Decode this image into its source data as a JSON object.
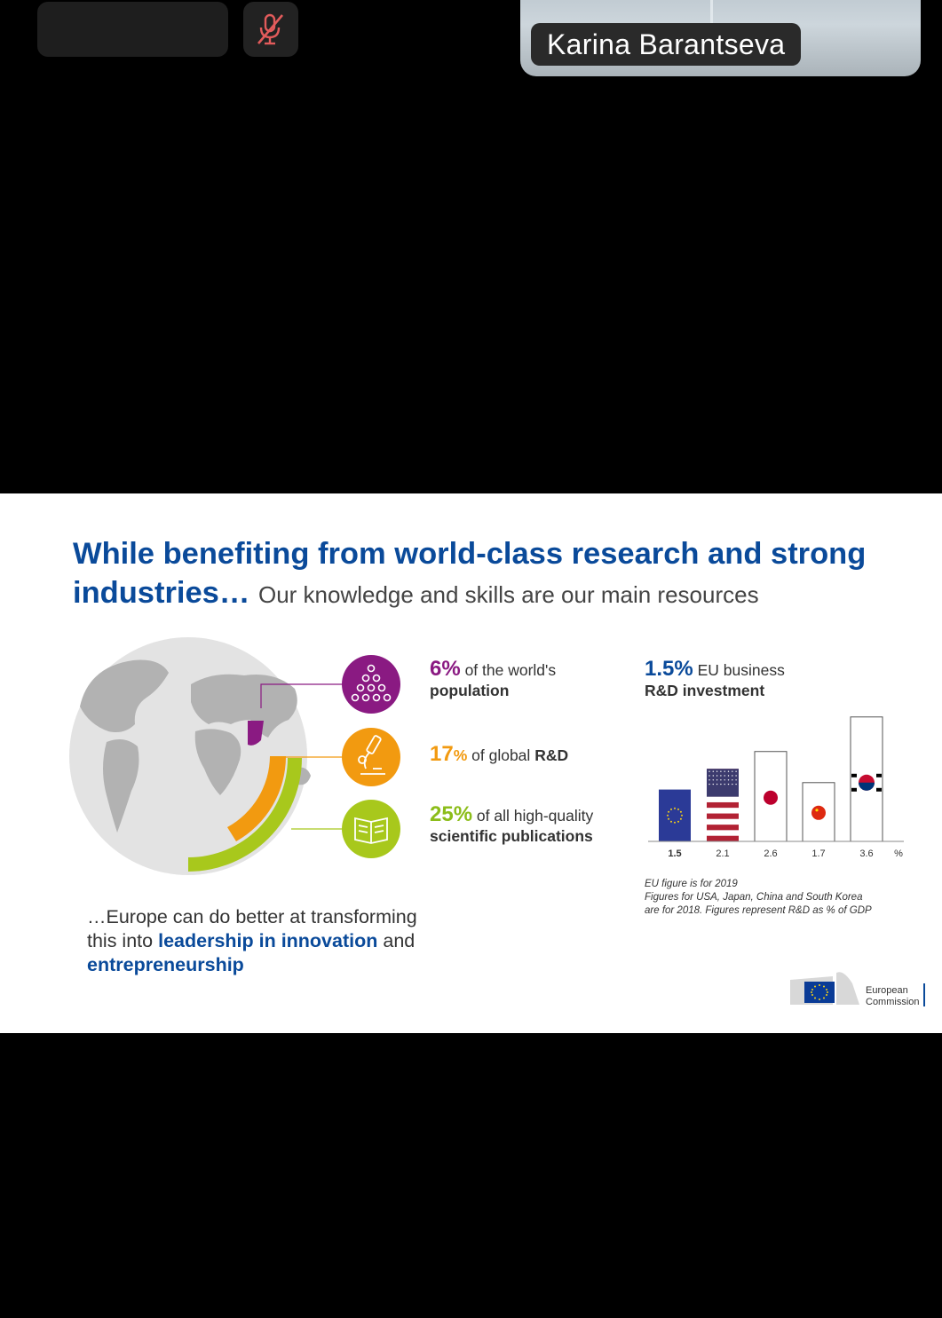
{
  "call": {
    "participant_name": "Karina Barantseva",
    "mic_status": "muted"
  },
  "slide": {
    "title_bold": "While benefiting from world-class research and strong industries…",
    "title_sub": "Our knowledge and skills are our main resources",
    "stats": [
      {
        "value": "6%",
        "text": "of the world's",
        "text_bold": "population",
        "color": "#8a1a82",
        "icon": "people-pyramid-icon"
      },
      {
        "value": "17",
        "unit": "%",
        "text": "of global",
        "text_bold": "R&D",
        "color": "#f29a10",
        "icon": "microscope-icon"
      },
      {
        "value": "25%",
        "text": "of all high-quality",
        "text_bold": "scientific publications",
        "color": "#8cbd1a",
        "icon": "book-icon"
      }
    ],
    "callout": {
      "prefix": "…Europe can do better at transforming this into",
      "bold1": "leadership in innovation",
      "mid": "and",
      "bold2": "entrepreneurship"
    },
    "chart_head": {
      "value": "1.5%",
      "text": "EU business",
      "text_bold": "R&D investment"
    },
    "chart_note": [
      "EU figure is for 2019",
      "Figures for USA, Japan, China and South Korea",
      "are for 2018. Figures represent R&D as % of GDP"
    ],
    "logo": {
      "line1": "European",
      "line2": "Commission"
    }
  },
  "chart_data": {
    "type": "bar",
    "categories": [
      "EU",
      "USA",
      "Japan",
      "China",
      "South Korea"
    ],
    "values": [
      1.5,
      2.1,
      2.6,
      1.7,
      3.6
    ],
    "value_labels": [
      "1.5",
      "2.1",
      "2.6",
      "1.7",
      "3.6"
    ],
    "unit_label": "%",
    "ylim": [
      0,
      3.8
    ]
  }
}
